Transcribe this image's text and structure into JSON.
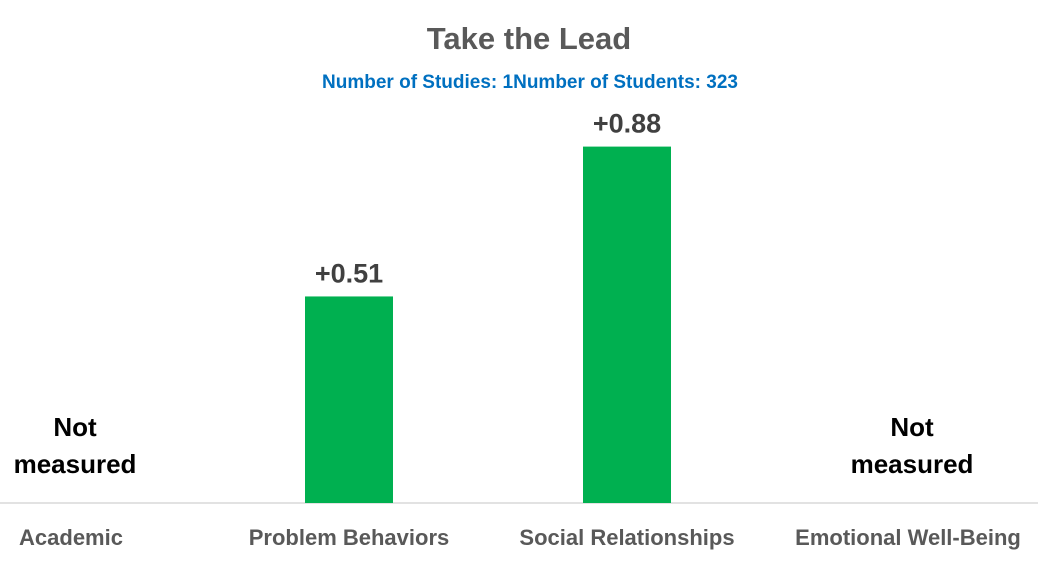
{
  "colors": {
    "bar": "#00b050",
    "title": "#595959",
    "subtitle": "#0070c0",
    "data_label": "#404040",
    "axis": "#d9d9d9"
  },
  "chart_data": {
    "type": "bar",
    "title": "Take the Lead",
    "subtitle_studies": "Number of Studies: 1",
    "subtitle_students": "Number of Students: 323",
    "categories": [
      "Academic",
      "Problem Behaviors",
      "Social Relationships",
      "Emotional Well-Being"
    ],
    "values": [
      null,
      0.51,
      0.88,
      null
    ],
    "data_labels": [
      "",
      "+0.51",
      "+0.88",
      ""
    ],
    "not_measured_label": [
      "Not",
      "measured"
    ],
    "xlabel": "",
    "ylabel": "",
    "ylim": [
      0,
      1.0
    ],
    "grid": false,
    "legend": "none"
  }
}
